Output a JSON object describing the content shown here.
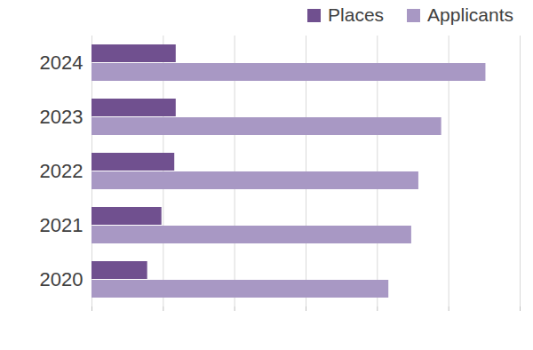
{
  "chart_data": {
    "type": "bar",
    "orientation": "horizontal",
    "categories": [
      "2020",
      "2021",
      "2022",
      "2023",
      "2024"
    ],
    "series": [
      {
        "name": "Places",
        "color": "#70508f",
        "values": [
          39,
          49,
          58,
          59,
          59
        ]
      },
      {
        "name": "Applicants",
        "color": "#a898c4",
        "values": [
          208,
          224,
          229,
          245,
          276
        ]
      }
    ],
    "xlim": [
      0,
      300
    ],
    "xticks": [
      0,
      50,
      100,
      150,
      200,
      250,
      300
    ],
    "grid": true,
    "legend": "top-right",
    "tick_labels": "y"
  }
}
